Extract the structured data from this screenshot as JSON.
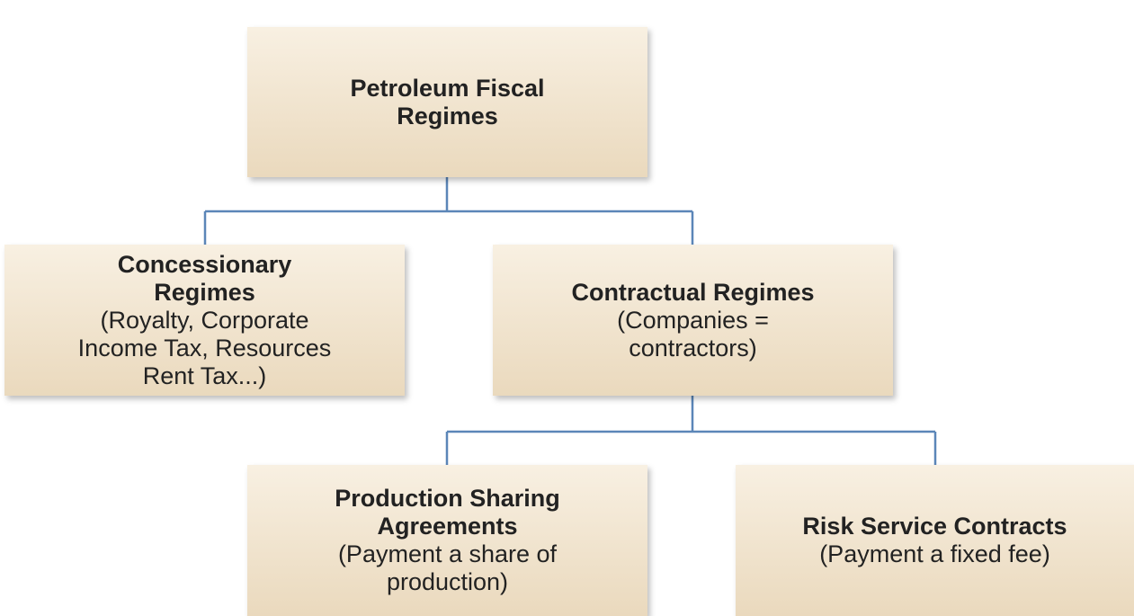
{
  "nodes": [
    {
      "title": [
        "Petroleum Fiscal",
        "Regimes"
      ],
      "detail": []
    },
    {
      "title": [
        "Concessionary",
        "Regimes"
      ],
      "detail": [
        "(Royalty, Corporate",
        "Income Tax, Resources",
        "Rent Tax...)"
      ]
    },
    {
      "title": [
        "Contractual Regimes"
      ],
      "detail": [
        "(Companies =",
        "contractors)"
      ]
    },
    {
      "title": [
        "Production Sharing",
        "Agreements"
      ],
      "detail": [
        "(Payment a share of",
        "production)"
      ]
    },
    {
      "title": [
        "Risk Service Contracts"
      ],
      "detail": [
        "(Payment a fixed fee)"
      ]
    }
  ]
}
